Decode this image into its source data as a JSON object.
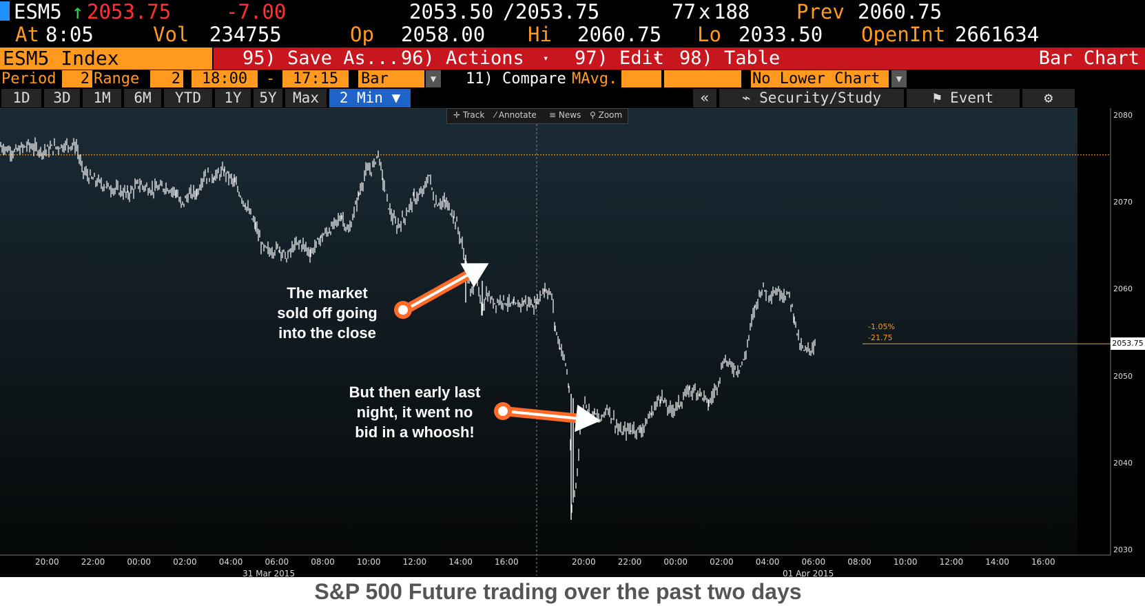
{
  "header": {
    "ticker": "ESM5",
    "arrow": "↑",
    "last": "2053.75",
    "change": "-7.00",
    "bid": "2053.50",
    "sep": "/",
    "ask": "2053.75",
    "size1": "77",
    "size_x": "x",
    "size2": "188",
    "prev_label": "Prev",
    "prev_value": "2060.75",
    "at_label": "At",
    "at_value": "8:05",
    "vol_label": "Vol",
    "vol_value": "234755",
    "op_label": "Op",
    "op_value": "2058.00",
    "hi_label": "Hi",
    "hi_value": "2060.75",
    "lo_label": "Lo",
    "lo_value": "2033.50",
    "oi_label": "OpenInt",
    "oi_value": "2661634"
  },
  "menu": {
    "security": "ESM5 Index",
    "save_as": "95) Save As...",
    "actions": "96) Actions",
    "edit": "97) Edit",
    "table": "98) Table",
    "title": "Bar Chart"
  },
  "settings": {
    "period_label": "Period",
    "period_value": "2",
    "range_label": "Range",
    "range_value": "2",
    "start_time": "18:00",
    "dash": "-",
    "end_time": "17:15",
    "chart_style": "Bar",
    "compare": "11) Compare",
    "mavg": "MAvg.",
    "lower_chart": "No Lower Chart"
  },
  "tabs": [
    "1D",
    "3D",
    "1M",
    "6M",
    "YTD",
    "1Y",
    "5Y",
    "Max"
  ],
  "active_tab": "2 Min",
  "side": {
    "collapse": "«",
    "security_study": "Security/Study",
    "event": "Event"
  },
  "tools": [
    "Track",
    "Annotate",
    "News",
    "Zoom"
  ],
  "annotations": {
    "note1": [
      "The market",
      "sold off going",
      "into the close"
    ],
    "note2": [
      "But then early last",
      "night, it went no",
      "bid in a whoosh!"
    ],
    "pct": "-1.05%",
    "pts": "-21.75",
    "last_tag": "2053.75"
  },
  "caption": "S&P 500 Future trading over the past two days",
  "colors": {
    "accent": "#ff9a1f",
    "red_bar": "#c8161e",
    "arrow": "#ff6a28"
  },
  "chart_data": {
    "type": "bar",
    "x_ticks": [
      "20:00",
      "22:00",
      "00:00",
      "02:00",
      "04:00",
      "06:00",
      "08:00",
      "10:00",
      "12:00",
      "14:00",
      "16:00",
      "20:00",
      "22:00",
      "00:00",
      "02:00",
      "04:00",
      "06:00",
      "08:00",
      "10:00",
      "12:00",
      "14:00",
      "16:00"
    ],
    "date_labels": [
      "31 Mar 2015",
      "01 Apr 2015"
    ],
    "y_ticks": [
      2030,
      2040,
      2050,
      2060,
      2070,
      2080
    ],
    "ylim": [
      2028.5,
      2080.5
    ],
    "prev_close": 2075.5,
    "last": 2053.75,
    "path": [
      [
        0,
        2076.5
      ],
      [
        20,
        2075.8
      ],
      [
        40,
        2076.6
      ],
      [
        60,
        2075.9
      ],
      [
        80,
        2076.4
      ],
      [
        100,
        2076.7
      ],
      [
        110,
        2076.5
      ],
      [
        118,
        2073.8
      ],
      [
        130,
        2072.8
      ],
      [
        150,
        2072.0
      ],
      [
        170,
        2071.4
      ],
      [
        185,
        2071.0
      ],
      [
        200,
        2072.1
      ],
      [
        220,
        2071.5
      ],
      [
        240,
        2071.8
      ],
      [
        255,
        2071.2
      ],
      [
        262,
        2069.6
      ],
      [
        272,
        2070.8
      ],
      [
        285,
        2071.2
      ],
      [
        295,
        2073.2
      ],
      [
        310,
        2073.0
      ],
      [
        325,
        2073.6
      ],
      [
        340,
        2072.2
      ],
      [
        355,
        2069.8
      ],
      [
        370,
        2067.3
      ],
      [
        380,
        2064.8
      ],
      [
        390,
        2064.4
      ],
      [
        405,
        2064.8
      ],
      [
        415,
        2063.6
      ],
      [
        425,
        2064.9
      ],
      [
        435,
        2065.4
      ],
      [
        450,
        2064.2
      ],
      [
        465,
        2066.0
      ],
      [
        480,
        2067.0
      ],
      [
        495,
        2068.5
      ],
      [
        505,
        2066.5
      ],
      [
        520,
        2071.0
      ],
      [
        530,
        2073.5
      ],
      [
        540,
        2074.0
      ],
      [
        548,
        2075.8
      ],
      [
        555,
        2072.5
      ],
      [
        565,
        2069.0
      ],
      [
        575,
        2067.2
      ],
      [
        585,
        2068.2
      ],
      [
        600,
        2070.5
      ],
      [
        612,
        2071.0
      ],
      [
        622,
        2073.2
      ],
      [
        630,
        2070.0
      ],
      [
        645,
        2070.0
      ],
      [
        658,
        2068.5
      ],
      [
        668,
        2065.8
      ],
      [
        676,
        2062.5
      ],
      [
        682,
        2059.5
      ],
      [
        690,
        2061.5
      ],
      [
        698,
        2057.5
      ],
      [
        705,
        2059.5
      ],
      [
        715,
        2058.5
      ],
      [
        730,
        2058.8
      ],
      [
        745,
        2058.0
      ],
      [
        760,
        2058.6
      ],
      [
        775,
        2058.2
      ],
      [
        790,
        2060.2
      ],
      [
        800,
        2059.2
      ],
      [
        805,
        2055.5
      ],
      [
        812,
        2053.5
      ],
      [
        820,
        2051.5
      ],
      [
        825,
        2048.5
      ],
      [
        829,
        2034.5
      ],
      [
        835,
        2037.5
      ],
      [
        842,
        2044.5
      ],
      [
        848,
        2047.5
      ],
      [
        855,
        2045.5
      ],
      [
        862,
        2045.8
      ],
      [
        870,
        2044.8
      ],
      [
        880,
        2046.5
      ],
      [
        890,
        2045.0
      ],
      [
        900,
        2043.5
      ],
      [
        915,
        2044.0
      ],
      [
        930,
        2043.8
      ],
      [
        945,
        2045.8
      ],
      [
        958,
        2047.8
      ],
      [
        970,
        2046.0
      ],
      [
        985,
        2046.8
      ],
      [
        1000,
        2048.5
      ],
      [
        1015,
        2048.2
      ],
      [
        1028,
        2046.8
      ],
      [
        1040,
        2049.0
      ],
      [
        1050,
        2052.0
      ],
      [
        1060,
        2051.2
      ],
      [
        1070,
        2050.8
      ],
      [
        1080,
        2052.0
      ],
      [
        1088,
        2055.5
      ],
      [
        1095,
        2058.0
      ],
      [
        1105,
        2060.2
      ],
      [
        1115,
        2059.5
      ],
      [
        1125,
        2059.8
      ],
      [
        1135,
        2059.6
      ],
      [
        1145,
        2059.2
      ],
      [
        1152,
        2056.8
      ],
      [
        1160,
        2053.5
      ],
      [
        1168,
        2052.8
      ],
      [
        1176,
        2053.2
      ],
      [
        1183,
        2053.75
      ]
    ]
  }
}
